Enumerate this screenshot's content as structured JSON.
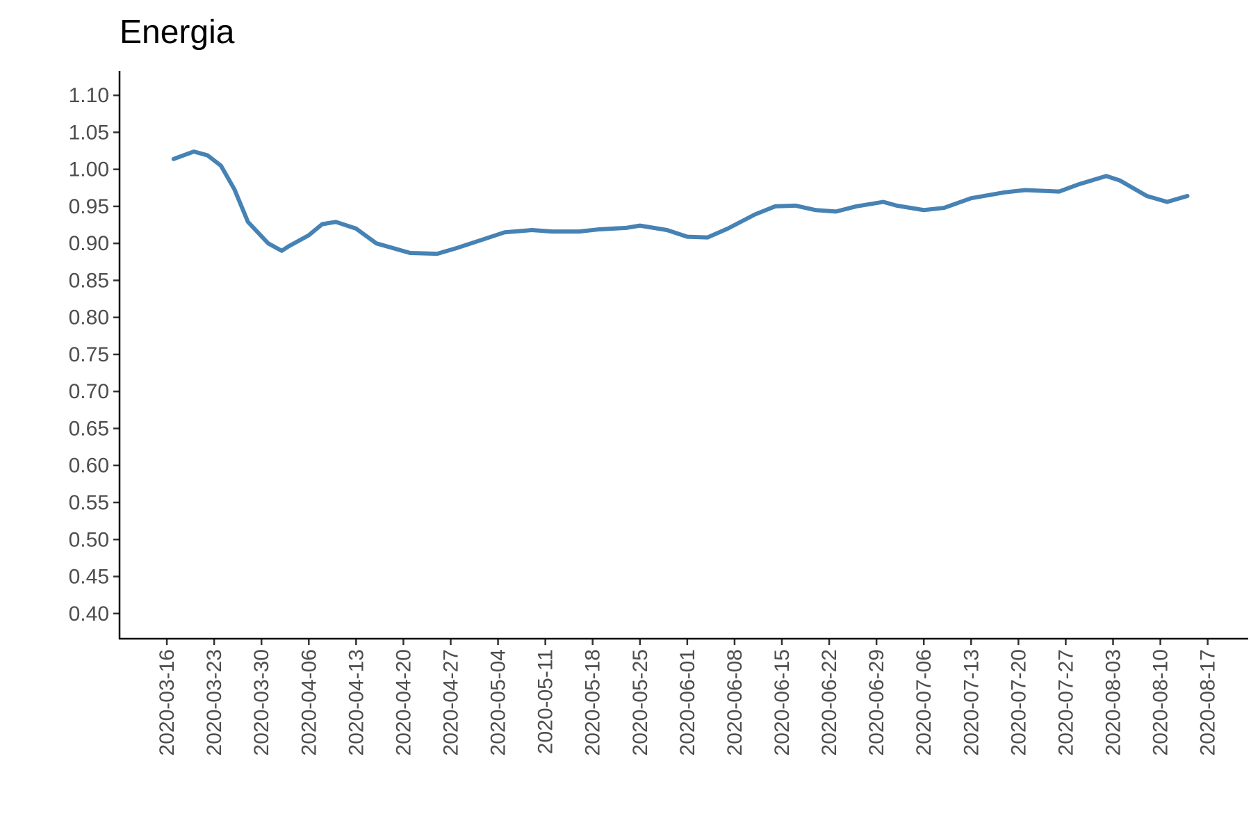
{
  "chart_data": {
    "type": "line",
    "title": "Energia",
    "x": [
      "2020-03-17",
      "2020-03-20",
      "2020-03-22",
      "2020-03-24",
      "2020-03-26",
      "2020-03-28",
      "2020-03-31",
      "2020-04-02",
      "2020-04-03",
      "2020-04-06",
      "2020-04-08",
      "2020-04-10",
      "2020-04-13",
      "2020-04-16",
      "2020-04-21",
      "2020-04-25",
      "2020-04-28",
      "2020-05-02",
      "2020-05-05",
      "2020-05-09",
      "2020-05-12",
      "2020-05-16",
      "2020-05-19",
      "2020-05-23",
      "2020-05-25",
      "2020-05-29",
      "2020-06-01",
      "2020-06-04",
      "2020-06-07",
      "2020-06-11",
      "2020-06-14",
      "2020-06-17",
      "2020-06-20",
      "2020-06-23",
      "2020-06-26",
      "2020-06-30",
      "2020-07-02",
      "2020-07-06",
      "2020-07-09",
      "2020-07-13",
      "2020-07-18",
      "2020-07-21",
      "2020-07-26",
      "2020-07-29",
      "2020-08-02",
      "2020-08-04",
      "2020-08-08",
      "2020-08-11",
      "2020-08-14"
    ],
    "series": [
      {
        "name": "Energia",
        "color": "#4682b4",
        "values": [
          1.014,
          1.024,
          1.019,
          1.005,
          0.973,
          0.929,
          0.9,
          0.89,
          0.896,
          0.911,
          0.926,
          0.929,
          0.92,
          0.9,
          0.887,
          0.886,
          0.894,
          0.906,
          0.915,
          0.918,
          0.916,
          0.916,
          0.919,
          0.921,
          0.924,
          0.918,
          0.909,
          0.908,
          0.92,
          0.939,
          0.95,
          0.951,
          0.945,
          0.943,
          0.95,
          0.956,
          0.951,
          0.945,
          0.948,
          0.961,
          0.969,
          0.972,
          0.97,
          0.98,
          0.991,
          0.985,
          0.964,
          0.956,
          0.964
        ]
      }
    ],
    "xlim": [
      "2020-03-09",
      "2020-08-23"
    ],
    "xticks": [
      "2020-03-16",
      "2020-03-23",
      "2020-03-30",
      "2020-04-06",
      "2020-04-13",
      "2020-04-20",
      "2020-04-27",
      "2020-05-04",
      "2020-05-11",
      "2020-05-18",
      "2020-05-25",
      "2020-06-01",
      "2020-06-08",
      "2020-06-15",
      "2020-06-22",
      "2020-06-29",
      "2020-07-06",
      "2020-07-13",
      "2020-07-20",
      "2020-07-27",
      "2020-08-03",
      "2020-08-10",
      "2020-08-17"
    ],
    "ylim": [
      0.366,
      1.133
    ],
    "yticks": [
      {
        "value": 0.4,
        "label": "0.40"
      },
      {
        "value": 0.45,
        "label": "0.45"
      },
      {
        "value": 0.5,
        "label": "0.50"
      },
      {
        "value": 0.55,
        "label": "0.55"
      },
      {
        "value": 0.6,
        "label": "0.60"
      },
      {
        "value": 0.65,
        "label": "0.65"
      },
      {
        "value": 0.7,
        "label": "0.70"
      },
      {
        "value": 0.75,
        "label": "0.75"
      },
      {
        "value": 0.8,
        "label": "0.80"
      },
      {
        "value": 0.85,
        "label": "0.85"
      },
      {
        "value": 0.9,
        "label": "0.90"
      },
      {
        "value": 0.95,
        "label": "0.95"
      },
      {
        "value": 1.0,
        "label": "1.00"
      },
      {
        "value": 1.05,
        "label": "1.05"
      },
      {
        "value": 1.1,
        "label": "1.10"
      }
    ],
    "grid": false
  }
}
